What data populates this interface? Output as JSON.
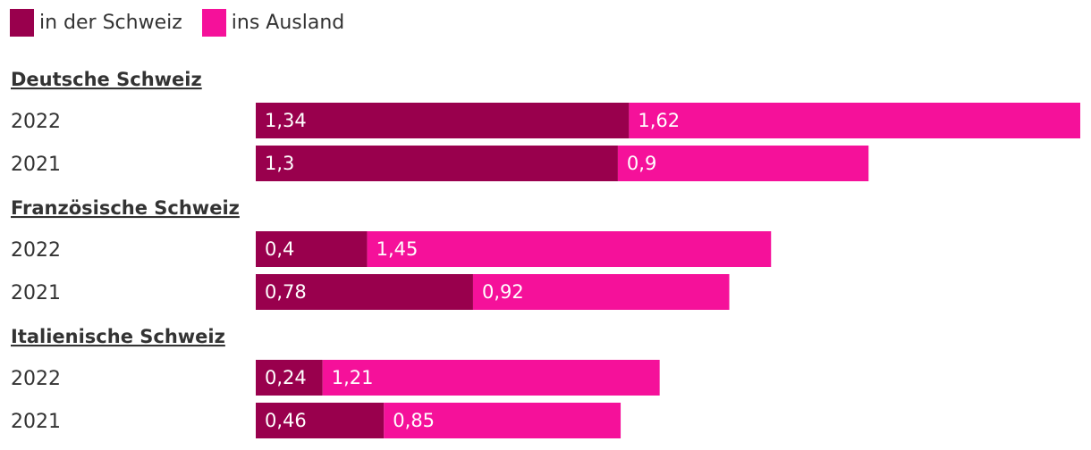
{
  "chart_data": {
    "type": "bar",
    "orientation": "horizontal",
    "stacked": true,
    "series": [
      {
        "name": "in der Schweiz",
        "color": "#99004d"
      },
      {
        "name": "ins Ausland",
        "color": "#f5119a"
      }
    ],
    "groups": [
      {
        "name": "Deutsche Schweiz",
        "rows": [
          {
            "label": "2022",
            "values": [
              1.34,
              1.62
            ],
            "value_labels": [
              "1,34",
              "1,62"
            ]
          },
          {
            "label": "2021",
            "values": [
              1.3,
              0.9
            ],
            "value_labels": [
              "1,3",
              "0,9"
            ]
          }
        ]
      },
      {
        "name": "Französische Schweiz",
        "rows": [
          {
            "label": "2022",
            "values": [
              0.4,
              1.45
            ],
            "value_labels": [
              "0,4",
              "1,45"
            ]
          },
          {
            "label": "2021",
            "values": [
              0.78,
              0.92
            ],
            "value_labels": [
              "0,78",
              "0,92"
            ]
          }
        ]
      },
      {
        "name": "Italienische Schweiz",
        "rows": [
          {
            "label": "2022",
            "values": [
              0.24,
              1.21
            ],
            "value_labels": [
              "0,24",
              "1,21"
            ]
          },
          {
            "label": "2021",
            "values": [
              0.46,
              0.85
            ],
            "value_labels": [
              "0,46",
              "0,85"
            ]
          }
        ]
      }
    ],
    "xlim": [
      0,
      2.96
    ],
    "grid": false,
    "legend_position": "top-left"
  }
}
